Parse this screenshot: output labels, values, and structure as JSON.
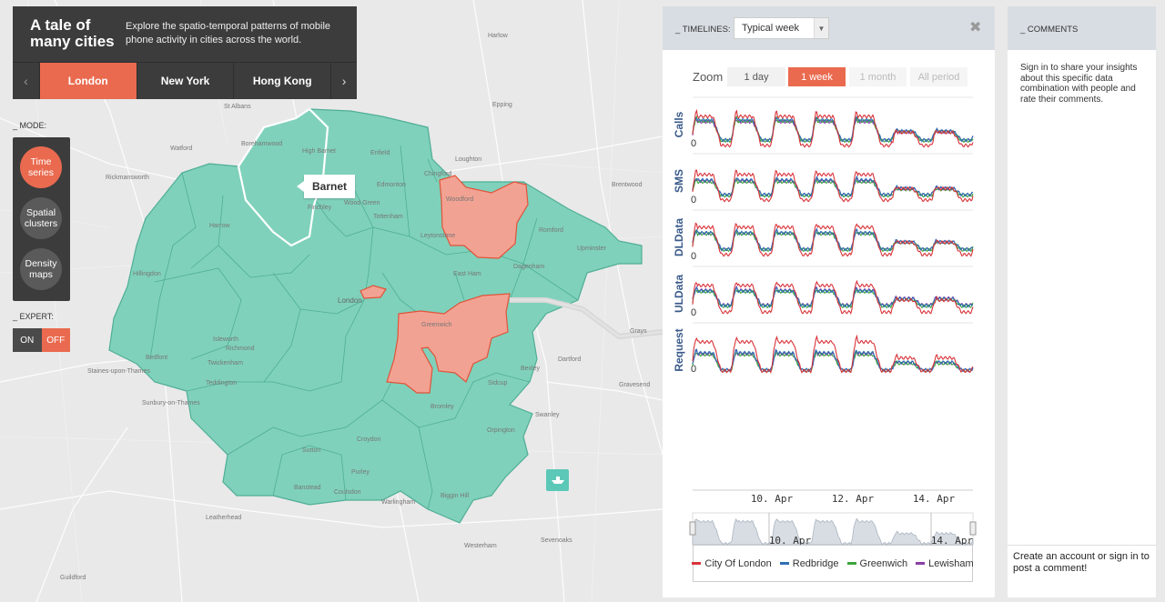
{
  "app": {
    "title": "A tale of many cities",
    "subtitle": "Explore the spatio-temporal patterns of mobile phone activity in cities across the world."
  },
  "city_tabs": [
    {
      "label": "London",
      "active": true
    },
    {
      "label": "New York",
      "active": false
    },
    {
      "label": "Hong Kong",
      "active": false
    }
  ],
  "mode": {
    "label": "_ MODE:",
    "buttons": [
      {
        "label": "Time series",
        "active": true
      },
      {
        "label": "Spatial clusters",
        "active": false
      },
      {
        "label": "Density maps",
        "active": false
      }
    ]
  },
  "expert": {
    "label": "_ EXPERT:",
    "on": "ON",
    "off": "OFF",
    "state": "OFF"
  },
  "map": {
    "hover_label": "Barnet",
    "place_labels": [
      "Harlow",
      "Epping",
      "Loughton",
      "Enfield",
      "High Barnet",
      "Borehamwood",
      "Watford",
      "Brentwood",
      "Edmonton",
      "Chingford",
      "Woodford",
      "Wood Green",
      "Tottenham",
      "Finchley",
      "Romford",
      "Upminster",
      "Leytonstone",
      "Dagenham",
      "East Ham",
      "London",
      "Hillingdon",
      "Isleworth",
      "Richmond",
      "Twickenham",
      "Teddington",
      "Bedfont",
      "Greenwich",
      "Bexley",
      "Sidcup",
      "Dartford",
      "Bromley",
      "Orpington",
      "Croydon",
      "Sutton",
      "Purley",
      "Banstead",
      "Coulsdon",
      "Warlingham",
      "Biggin Hill",
      "Swanley",
      "Sevenoaks",
      "Westerham",
      "Leatherhead",
      "Guildford",
      "Sunbury-on-Thames",
      "Staines-upon-Thames",
      "Grays",
      "Gravesend",
      "Rickmansworth",
      "St Albans",
      "Harrow"
    ],
    "colors": {
      "borough": "#7fd1bb",
      "selected": "#f2a293",
      "selected_border": "#e0533a"
    }
  },
  "timelines": {
    "label": "_ TIMELINES:",
    "selected": "Typical week",
    "zoom_label": "Zoom",
    "zoom_options": [
      {
        "label": "1 day",
        "state": "normal"
      },
      {
        "label": "1 week",
        "state": "active"
      },
      {
        "label": "1 month",
        "state": "disabled"
      },
      {
        "label": "All period",
        "state": "disabled"
      }
    ]
  },
  "chart_data": {
    "type": "line",
    "panels": [
      {
        "ylabel": "Calls",
        "ytick": "0"
      },
      {
        "ylabel": "SMS",
        "ytick": "0"
      },
      {
        "ylabel": "DLData",
        "ytick": "0"
      },
      {
        "ylabel": "ULData",
        "ytick": "0"
      },
      {
        "ylabel": "Request",
        "ytick": "0"
      }
    ],
    "x_ticks": [
      "10. Apr",
      "12. Apr",
      "14. Apr"
    ],
    "navigator_ticks": [
      "10. Apr",
      "14. Apr"
    ],
    "days": 7,
    "series": [
      {
        "name": "City Of London",
        "color": "#d9333a"
      },
      {
        "name": "Redbridge",
        "color": "#2f6fb5"
      },
      {
        "name": "Greenwich",
        "color": "#3aa63a"
      },
      {
        "name": "Lewisham",
        "color": "#8a3fa8"
      }
    ],
    "grid": false,
    "legend": "bottom"
  },
  "comments": {
    "label": "_ COMMENTS",
    "prompt": "Sign in to share your insights about this specific data combination with people and rate their comments.",
    "footer": "Create an account or sign in to post a comment!"
  }
}
